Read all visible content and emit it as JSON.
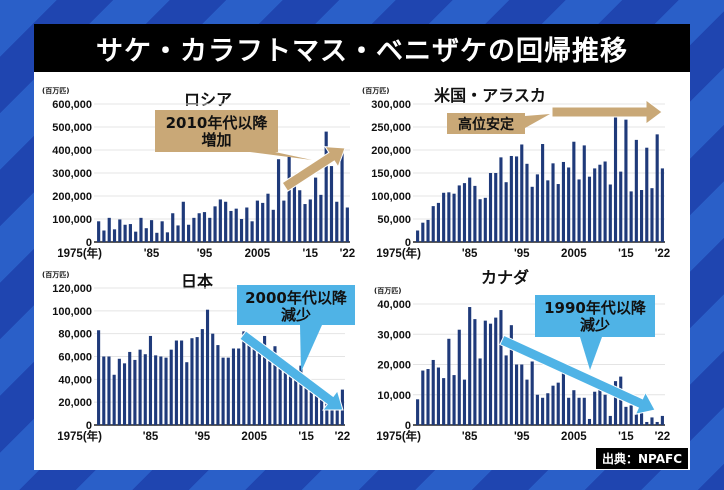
{
  "title": "サケ・カラフトマス・ベニザケの回帰推移",
  "source": "出典：NPAFC",
  "colors": {
    "bar": "#1f3a7a",
    "tan": "#c9a877",
    "blue": "#4fb3e6",
    "title_bg": "#000000"
  },
  "chart_data": [
    {
      "type": "bar",
      "title": "ロシア",
      "unit": "(百万匹)",
      "ylim": [
        0,
        600000
      ],
      "yticks": [
        "0",
        "100,000",
        "200,000",
        "300,000",
        "400,000",
        "500,000",
        "600,000"
      ],
      "xticks": [
        "1975(年)",
        "'85",
        "'95",
        "2005",
        "'15",
        "'22"
      ],
      "annotation": "2010年代以降\n増加",
      "annotation_color": "#c9a877",
      "years": [
        1975,
        2022
      ],
      "values": [
        90000,
        50000,
        105000,
        55000,
        98000,
        75000,
        78000,
        45000,
        105000,
        60000,
        95000,
        40000,
        90000,
        42000,
        125000,
        72000,
        175000,
        75000,
        105000,
        125000,
        130000,
        105000,
        155000,
        185000,
        175000,
        135000,
        145000,
        100000,
        150000,
        90000,
        180000,
        170000,
        210000,
        140000,
        360000,
        180000,
        370000,
        260000,
        225000,
        165000,
        185000,
        280000,
        205000,
        480000,
        330000,
        175000,
        410000,
        150000
      ]
    },
    {
      "type": "bar",
      "title": "米国・アラスカ",
      "unit": "(百万匹)",
      "ylim": [
        0,
        300000
      ],
      "yticks": [
        "0",
        "50,000",
        "100,000",
        "150,000",
        "200,000",
        "250,000",
        "300,000"
      ],
      "xticks": [
        "1975(年)",
        "'85",
        "'95",
        "2005",
        "'15",
        "'22"
      ],
      "annotation": "高位安定",
      "annotation_color": "#c9a877",
      "years": [
        1975,
        2022
      ],
      "values": [
        25000,
        42000,
        48000,
        78000,
        85000,
        107000,
        108000,
        105000,
        123000,
        128000,
        140000,
        122000,
        93000,
        96000,
        150000,
        150000,
        184000,
        130000,
        187000,
        186000,
        212000,
        170000,
        120000,
        147000,
        213000,
        134000,
        171000,
        126000,
        174000,
        162000,
        218000,
        136000,
        210000,
        142000,
        160000,
        168000,
        175000,
        125000,
        273000,
        153000,
        266000,
        110000,
        222000,
        113000,
        205000,
        117000,
        234000,
        160000
      ]
    },
    {
      "type": "bar",
      "title": "日本",
      "unit": "(百万匹)",
      "ylim": [
        0,
        120000
      ],
      "yticks": [
        "0",
        "20,000",
        "40,000",
        "60,000",
        "80,000",
        "100,000",
        "120,000"
      ],
      "xticks": [
        "1975(年)",
        "'85",
        "'95",
        "2005",
        "'15",
        "'22"
      ],
      "annotation": "2000年代以降\n減少",
      "annotation_color": "#4fb3e6",
      "years": [
        1975,
        2022
      ],
      "values": [
        83000,
        60000,
        60000,
        44000,
        58000,
        54000,
        64000,
        57000,
        66000,
        62000,
        78000,
        61000,
        60000,
        59000,
        66000,
        74000,
        74000,
        55000,
        76000,
        77000,
        84000,
        101000,
        80000,
        70000,
        59000,
        59000,
        67000,
        67000,
        82000,
        72000,
        70000,
        66000,
        78000,
        56000,
        69000,
        55000,
        50000,
        45000,
        43000,
        52000,
        40000,
        36000,
        33000,
        22000,
        27000,
        18000,
        18000,
        31000
      ]
    },
    {
      "type": "bar",
      "title": "カナダ",
      "unit": "(百万匹)",
      "ylim": [
        0,
        40000
      ],
      "yticks": [
        "0",
        "10,000",
        "20,000",
        "30,000",
        "40,000"
      ],
      "xticks": [
        "1975(年)",
        "'85",
        "'95",
        "2005",
        "'15",
        "'22"
      ],
      "annotation": "1990年代以降\n減少",
      "annotation_color": "#4fb3e6",
      "years": [
        1975,
        2022
      ],
      "values": [
        8500,
        18000,
        18500,
        21500,
        19000,
        15500,
        28500,
        16500,
        31500,
        15000,
        39000,
        35000,
        22000,
        34500,
        33500,
        35500,
        38000,
        23000,
        33000,
        20000,
        20000,
        15000,
        21000,
        10000,
        9000,
        10500,
        13000,
        14000,
        18000,
        9000,
        11500,
        9000,
        9000,
        2000,
        11000,
        13000,
        10000,
        3000,
        14500,
        16000,
        6000,
        6500,
        3500,
        7000,
        1000,
        2500,
        1000,
        3000
      ]
    }
  ]
}
